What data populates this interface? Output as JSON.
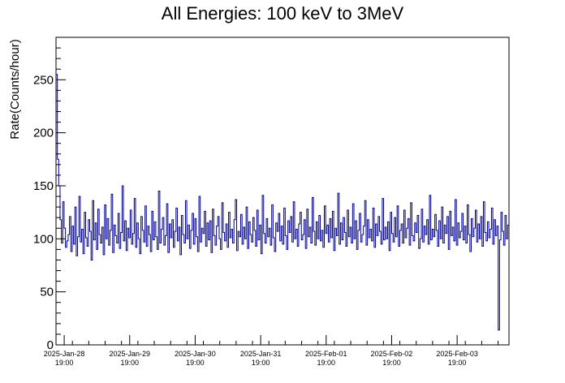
{
  "chart_data": {
    "type": "line",
    "title": "All Energies:  100 keV to 3MeV",
    "xlabel": "",
    "ylabel": "Rate(Counts/hour)",
    "ylim": [
      0,
      290
    ],
    "yticks": [
      0,
      50,
      100,
      150,
      200,
      250
    ],
    "xticks": [
      {
        "date": "2025-Jan-28",
        "time": "19:00"
      },
      {
        "date": "2025-Jan-29",
        "time": "19:00"
      },
      {
        "date": "2025-Jan-30",
        "time": "19:00"
      },
      {
        "date": "2025-Jan-31",
        "time": "19:00"
      },
      {
        "date": "2025-Feb-01",
        "time": "19:00"
      },
      {
        "date": "2025-Feb-02",
        "time": "19:00"
      },
      {
        "date": "2025-Feb-03",
        "time": "19:00"
      }
    ],
    "x_range": [
      "2025-01-28 16:00",
      "2025-02-04 14:00"
    ],
    "grid": false,
    "line_color": "#00008b",
    "series": [
      {
        "values": [
          255,
          175,
          150,
          118,
          96,
          135,
          110,
          92,
          98,
          104,
          121,
          88,
          112,
          95,
          130,
          84,
          102,
          140,
          97,
          109,
          86,
          125,
          101,
          93,
          118,
          107,
          80,
          136,
          99,
          115,
          90,
          128,
          104,
          96,
          111,
          85,
          132,
          100,
          119,
          94,
          108,
          142,
          87,
          113,
          103,
          96,
          124,
          91,
          106,
          150,
          98,
          117,
          89,
          110,
          101,
          127,
          95,
          105,
          138,
          92,
          115,
          100,
          86,
          121,
          108,
          97,
          131,
          93,
          112,
          104,
          88,
          126,
          99,
          116,
          102,
          90,
          145,
          96,
          109,
          120,
          94,
          103,
          133,
          87,
          114,
          101,
          118,
          92,
          107,
          129,
          98,
          111,
          85,
          122,
          104,
          96,
          136,
          100,
          113,
          91,
          108,
          124,
          95,
          119,
          102,
          88,
          140,
          97,
          110,
          105,
          126,
          93,
          115,
          99,
          117,
          87,
          128,
          103,
          94,
          112,
          121,
          100,
          90,
          134,
          106,
          98,
          114,
          92,
          125,
          101,
          109,
          96,
          118,
          137,
          89,
          107,
          102,
          123,
          95,
          111,
          100,
          130,
          91,
          116,
          104,
          97,
          120,
          108,
          93,
          127,
          99,
          113,
          86,
          141,
          105,
          96,
          119,
          102,
          110,
          94,
          132,
          101,
          88,
          115,
          107,
          124,
          98,
          112,
          95,
          129,
          103,
          90,
          117,
          106,
          121,
          97,
          135,
          100,
          109,
          93,
          114,
          125,
          99,
          104,
          118,
          91,
          128,
          102,
          111,
          96,
          139,
          107,
          94,
          116,
          100,
          122,
          98,
          108,
          92,
          131,
          105,
          113,
          97,
          119,
          101,
          126,
          89,
          110,
          103,
          143,
          95,
          115,
          99,
          120,
          106,
          93,
          127,
          102,
          111,
          96,
          133,
          100,
          117,
          90,
          108,
          124,
          97,
          104,
          112,
          136,
          94,
          118,
          101,
          109,
          98,
          129,
          92,
          114,
          103,
          121,
          107,
          95,
          138,
          99,
          111,
          100,
          116,
          89,
          125,
          105,
          97,
          120,
          102,
          131,
          93,
          108,
          114,
          96,
          127,
          101,
          110,
          119,
          94,
          134,
          103,
          98,
          115,
          106,
          122,
          91,
          100,
          128,
          97,
          112,
          104,
          118,
          95,
          141,
          99,
          109,
          102,
          123,
          108,
          93,
          117,
          100,
          130,
          96,
          113,
          105,
          121,
          90,
          126,
          103,
          111,
          98,
          137,
          94,
          115,
          101,
          107,
          124,
          99,
          112,
          96,
          132,
          104,
          88,
          119,
          102,
          110,
          127,
          97,
          114,
          100,
          121,
          93,
          135,
          106,
          98,
          116,
          101,
          109,
          129,
          95,
          118,
          103,
          112,
          14,
          99,
          125,
          107,
          94,
          122,
          100,
          113
        ]
      }
    ]
  }
}
